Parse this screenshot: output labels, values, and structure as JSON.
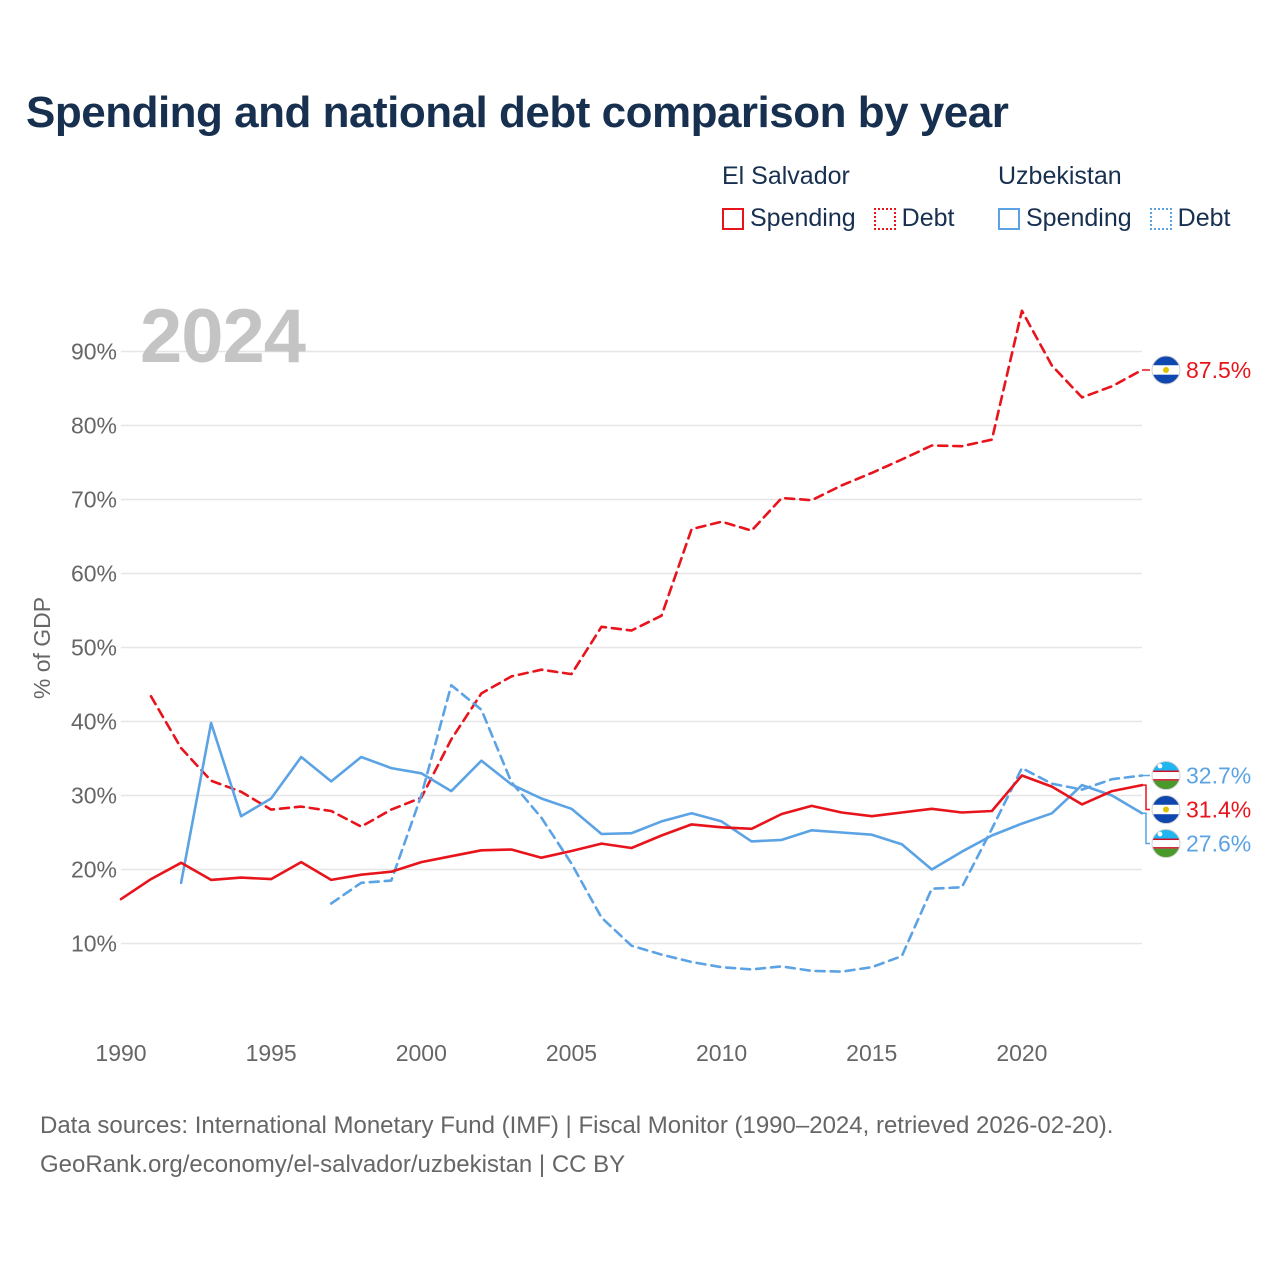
{
  "title": "Spending and national debt comparison by year",
  "year_label": "2024",
  "legend": {
    "groups": [
      {
        "name": "El Salvador",
        "color": "#e8141c",
        "items": [
          {
            "label": "Spending",
            "style": "solid"
          },
          {
            "label": "Debt",
            "style": "dotted"
          }
        ]
      },
      {
        "name": "Uzbekistan",
        "color": "#5ba3e4",
        "items": [
          {
            "label": "Spending",
            "style": "solid"
          },
          {
            "label": "Debt",
            "style": "dotted"
          }
        ]
      }
    ]
  },
  "source": {
    "line1": "Data sources: International Monetary Fund (IMF) | Fiscal Monitor (1990–2024, retrieved 2026-02-20).",
    "line2": "GeoRank.org/economy/el-salvador/uzbekistan | CC BY"
  },
  "colors": {
    "el_salvador": "#e8141c",
    "uzbekistan": "#5ba3e4"
  },
  "chart_data": {
    "type": "line",
    "title": "Spending and national debt comparison by year",
    "xlabel": "",
    "ylabel": "% of GDP",
    "xlim": [
      1990,
      2024
    ],
    "ylim": [
      0,
      97
    ],
    "x_ticks": [
      1990,
      1995,
      2000,
      2005,
      2010,
      2015,
      2020
    ],
    "y_ticks": [
      10,
      20,
      30,
      40,
      50,
      60,
      70,
      80,
      90
    ],
    "y_tick_labels": [
      "10%",
      "20%",
      "30%",
      "40%",
      "50%",
      "60%",
      "70%",
      "80%",
      "90%"
    ],
    "grid": true,
    "series": [
      {
        "name": "El Salvador Spending",
        "color": "#e8141c",
        "dash": "solid",
        "flag": "el-salvador",
        "end_label": "31.4%",
        "x": [
          1990,
          1991,
          1992,
          1993,
          1994,
          1995,
          1996,
          1997,
          1998,
          1999,
          2000,
          2001,
          2002,
          2003,
          2004,
          2005,
          2006,
          2007,
          2008,
          2009,
          2010,
          2011,
          2012,
          2013,
          2014,
          2015,
          2016,
          2017,
          2018,
          2019,
          2020,
          2021,
          2022,
          2023,
          2024
        ],
        "values": [
          16.0,
          18.7,
          20.9,
          18.6,
          18.9,
          18.7,
          21.0,
          18.6,
          19.3,
          19.7,
          21.0,
          21.8,
          22.6,
          22.7,
          21.6,
          22.5,
          23.5,
          22.9,
          24.6,
          26.1,
          25.7,
          25.5,
          27.5,
          28.6,
          27.7,
          27.2,
          27.7,
          28.2,
          27.7,
          27.9,
          32.7,
          31.2,
          28.8,
          30.6,
          31.4
        ]
      },
      {
        "name": "El Salvador Debt",
        "color": "#e8141c",
        "dash": "dashed",
        "flag": "el-salvador",
        "end_label": "87.5%",
        "x": [
          1991,
          1992,
          1993,
          1994,
          1995,
          1996,
          1997,
          1998,
          1999,
          2000,
          2001,
          2002,
          2003,
          2004,
          2005,
          2006,
          2007,
          2008,
          2009,
          2010,
          2011,
          2012,
          2013,
          2014,
          2015,
          2016,
          2017,
          2018,
          2019,
          2020,
          2021,
          2022,
          2023,
          2024
        ],
        "values": [
          43.4,
          36.4,
          32.0,
          30.5,
          28.1,
          28.5,
          27.9,
          25.8,
          28.1,
          29.7,
          37.6,
          43.8,
          46.1,
          47.0,
          46.4,
          52.8,
          52.3,
          54.3,
          66.0,
          67.0,
          65.8,
          70.2,
          69.9,
          71.9,
          73.6,
          75.4,
          77.3,
          77.2,
          78.1,
          95.5,
          88.1,
          83.8,
          85.3,
          87.5
        ]
      },
      {
        "name": "Uzbekistan Spending",
        "color": "#5ba3e4",
        "dash": "solid",
        "flag": "uzbekistan",
        "end_label": "27.6%",
        "x": [
          1992,
          1993,
          1994,
          1995,
          1996,
          1997,
          1998,
          1999,
          2000,
          2001,
          2002,
          2003,
          2004,
          2005,
          2006,
          2007,
          2008,
          2009,
          2010,
          2011,
          2012,
          2013,
          2014,
          2015,
          2016,
          2017,
          2018,
          2019,
          2020,
          2021,
          2022,
          2023,
          2024
        ],
        "values": [
          18.2,
          39.8,
          27.2,
          29.6,
          35.2,
          31.9,
          35.2,
          33.7,
          33.0,
          30.6,
          34.7,
          31.5,
          29.6,
          28.2,
          24.8,
          24.9,
          26.5,
          27.6,
          26.5,
          23.8,
          24.0,
          25.3,
          25.0,
          24.7,
          23.4,
          20.0,
          22.4,
          24.6,
          26.2,
          27.6,
          31.4,
          30.0,
          27.6
        ]
      },
      {
        "name": "Uzbekistan Debt",
        "color": "#5ba3e4",
        "dash": "dashed",
        "flag": "uzbekistan",
        "end_label": "32.7%",
        "x": [
          1997,
          1998,
          1999,
          2000,
          2001,
          2002,
          2003,
          2004,
          2005,
          2006,
          2007,
          2008,
          2009,
          2010,
          2011,
          2012,
          2013,
          2014,
          2015,
          2016,
          2017,
          2018,
          2019,
          2020,
          2021,
          2022,
          2023,
          2024
        ],
        "values": [
          15.4,
          18.2,
          18.5,
          30.0,
          44.9,
          41.6,
          31.8,
          27.0,
          20.8,
          13.5,
          9.7,
          8.5,
          7.5,
          6.8,
          6.5,
          6.9,
          6.3,
          6.2,
          6.8,
          8.3,
          17.4,
          17.6,
          25.5,
          33.7,
          31.6,
          30.8,
          32.2,
          32.7
        ]
      }
    ]
  }
}
